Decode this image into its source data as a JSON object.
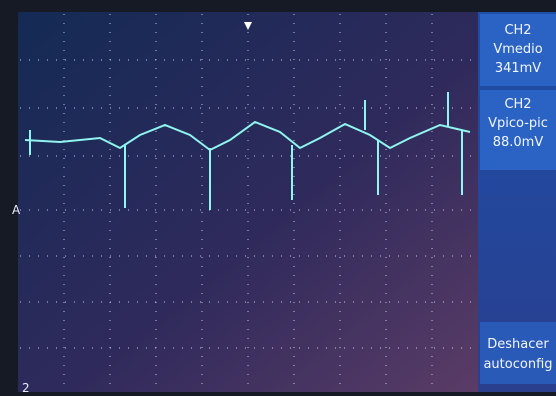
{
  "panel": {
    "measure1": {
      "channel": "CH2",
      "label": "Vmedio",
      "value": "341mV"
    },
    "measure2": {
      "channel": "CH2",
      "label": "Vpico-pic",
      "value": "88.0mV"
    },
    "button": {
      "line1": "Deshacer",
      "line2": "autoconfig"
    }
  },
  "screen": {
    "trigger_marker": "A",
    "channel_marker": "2"
  }
}
